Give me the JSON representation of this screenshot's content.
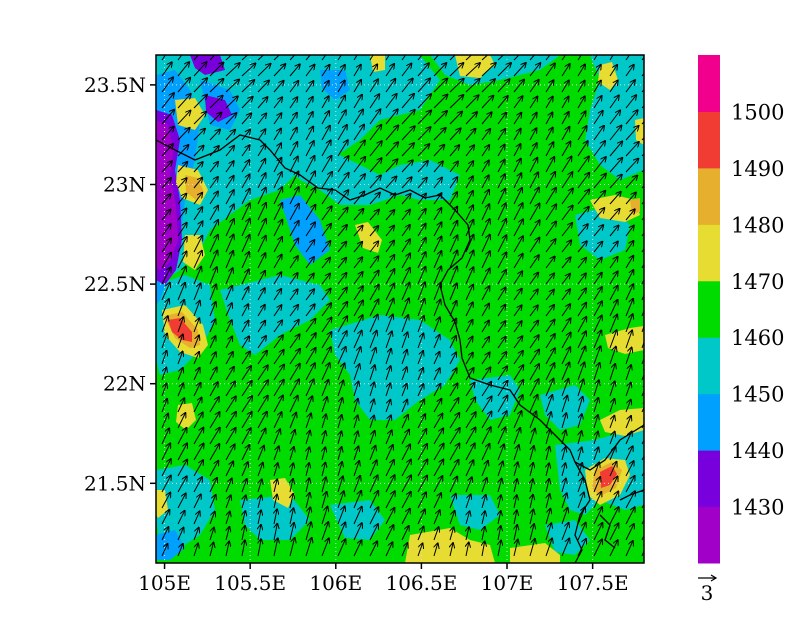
{
  "map": {
    "lon_range": [
      104.95,
      107.8
    ],
    "lat_range": [
      21.1,
      23.65
    ],
    "lon_ticks": [
      {
        "value": 105.0,
        "label": "105E"
      },
      {
        "value": 105.5,
        "label": "105.5E"
      },
      {
        "value": 106.0,
        "label": "106E"
      },
      {
        "value": 106.5,
        "label": "106.5E"
      },
      {
        "value": 107.0,
        "label": "107E"
      },
      {
        "value": 107.5,
        "label": "107.5E"
      }
    ],
    "lat_ticks": [
      {
        "value": 21.5,
        "label": "21.5N"
      },
      {
        "value": 22.0,
        "label": "22N"
      },
      {
        "value": 22.5,
        "label": "22.5N"
      },
      {
        "value": 23.0,
        "label": "23N"
      },
      {
        "value": 23.5,
        "label": "23.5N"
      }
    ],
    "grid": true,
    "vector_reference": {
      "label": "3"
    }
  },
  "colorbar": {
    "levels": [
      "1430",
      "1440",
      "1450",
      "1460",
      "1470",
      "1480",
      "1490",
      "1500"
    ],
    "colors": [
      "#a000c8",
      "#7800dc",
      "#00a0ff",
      "#00c8c8",
      "#00dc00",
      "#e6dc32",
      "#e6af2d",
      "#f03c32",
      "#f0008c"
    ]
  },
  "field_colors": {
    "violet": "#a000c8",
    "purple": "#7800dc",
    "blue": "#00a0ff",
    "cyan": "#00c8c8",
    "green": "#00dc00",
    "yellow": "#e6dc32",
    "orange": "#e6af2d",
    "red": "#f03c32"
  }
}
